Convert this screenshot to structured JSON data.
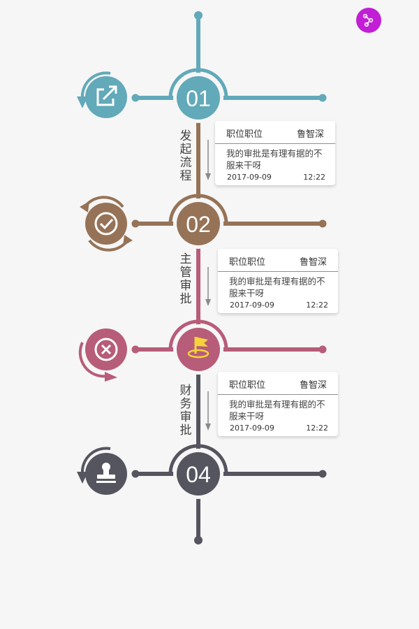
{
  "colors": {
    "teal": "#62a9b9",
    "brown": "#967357",
    "rose": "#b75c79",
    "slate": "#555560",
    "share": "#c21ed6",
    "flag": "#f4d43b"
  },
  "icons": {
    "share": "share-nodes-icon",
    "start": "external-link-icon",
    "approve": "check-circle-icon",
    "reject": "close-circle-icon",
    "flag": "flag-icon",
    "stamp": "stamp-icon"
  },
  "steps": [
    {
      "number": "01",
      "color": "teal"
    },
    {
      "number": "02",
      "color": "brown"
    },
    {
      "number": "",
      "color": "rose"
    },
    {
      "number": "04",
      "color": "slate"
    }
  ],
  "stages": [
    {
      "label": "发起流程"
    },
    {
      "label": "主管审批"
    },
    {
      "label": "财务审批"
    }
  ],
  "cards": [
    {
      "position": "职位职位",
      "name": "鲁智深",
      "message": "我的审批是有理有据的不服来干呀",
      "date": "2017-09-09",
      "time": "12:22"
    },
    {
      "position": "职位职位",
      "name": "鲁智深",
      "message": "我的审批是有理有据的不服来干呀",
      "date": "2017-09-09",
      "time": "12:22"
    },
    {
      "position": "职位职位",
      "name": "鲁智深",
      "message": "我的审批是有理有据的不服来干呀",
      "date": "2017-09-09",
      "time": "12:22"
    }
  ]
}
